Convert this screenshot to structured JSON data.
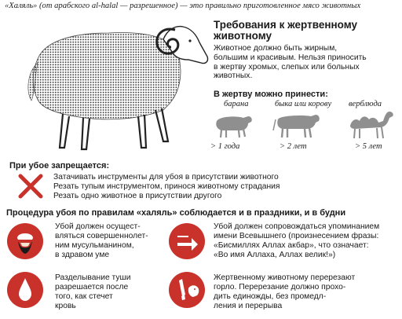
{
  "intro": "«Халяль» (от арабского al-halal — разрешенное) — это правильно приготовленное мясо животных",
  "requirements": {
    "title_line1": "Требования к жертвенному",
    "title_line2": "животному",
    "text_lines": [
      "Животное должно быть жирным,",
      "большим и красивым. Нельзя приносить",
      "в жертву хромых, слепых или больных",
      "животных."
    ]
  },
  "sacrifice": {
    "title": "В жертву можно принести:",
    "animals": [
      {
        "name": "барана",
        "age": "> 1 года",
        "icon": "sheep-icon"
      },
      {
        "name": "быка или корову",
        "age": "> 2 лет",
        "icon": "cow-icon"
      },
      {
        "name": "верблюда",
        "age": "> 5 лет",
        "icon": "camel-icon"
      }
    ]
  },
  "prohibited": {
    "title": "При убое запрещается:",
    "icon": "red-cross-icon",
    "items": [
      "Затачивать инструменты для убоя в присутствии животного",
      "Резать тупым инструментом, принося животному страдания",
      "Резать одно животное в присутствии другого"
    ]
  },
  "procedure": {
    "title": "Процедура убоя по правилам «халяль» соблюдается и в праздники, и в будни",
    "blocks": [
      {
        "icon": "muslim-man-icon",
        "lines": [
          "Убой должен осущест-",
          "вляться совершеннолет-",
          "ним мусульманином,",
          "в здравом уме"
        ]
      },
      {
        "icon": "blood-drop-icon",
        "lines": [
          "Разделывание туши",
          "разрешается после",
          "того, как стечет",
          "кровь"
        ]
      },
      {
        "icon": "speech-arrow-icon",
        "lines": [
          "Убой должен сопровождаться упоминанием",
          "имени Всевышнего (произнесением фразы:",
          "«Бисмиллях Аллах акбар», что означает:",
          "«Во имя Аллаха, Аллах велик!»)"
        ]
      },
      {
        "icon": "knife-sheep-icon",
        "lines": [
          "Жертвенному животному перерезают",
          "горло. Перерезание должно прохо-",
          "дить единожды, без промедл-",
          "ления и перерыва"
        ]
      }
    ]
  },
  "colors": {
    "accent": "#c8322a",
    "text": "#1a1a1a",
    "silhouette": "#8f8f8f"
  }
}
